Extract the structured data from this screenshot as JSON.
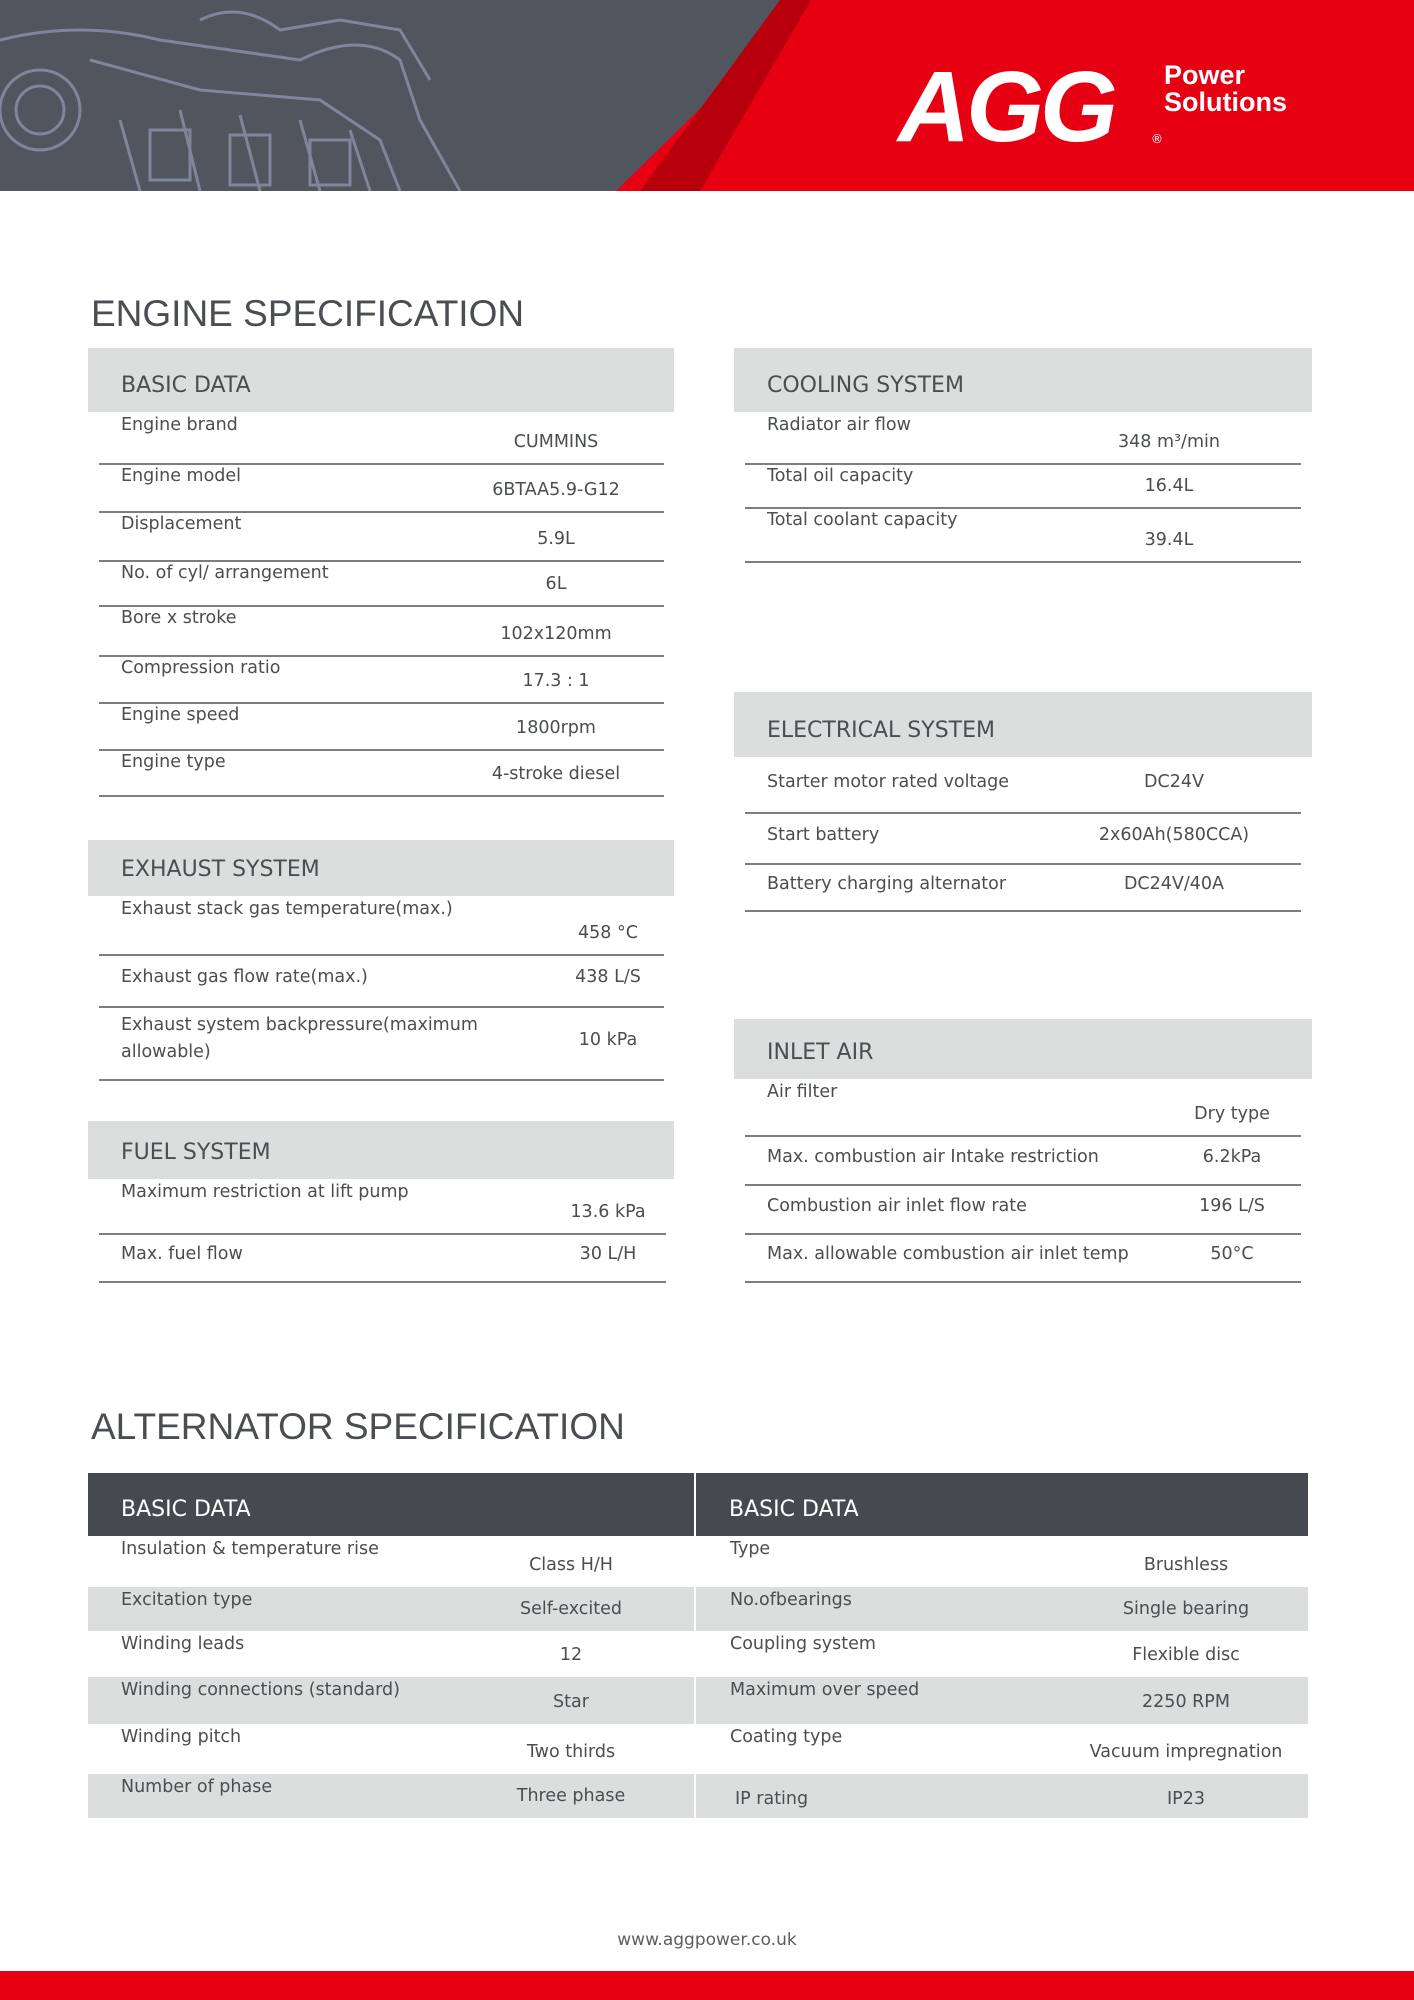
{
  "brand": {
    "logo_text": "AGG",
    "logo_sub_1": "Power",
    "logo_sub_2": "Solutions",
    "registered": "®",
    "colors": {
      "red": "#e60012",
      "dark_gray": "#50555e",
      "header_gray": "#dcdedd",
      "table_dark": "#464a50"
    }
  },
  "engine": {
    "title": "ENGINE SPECIFICATION",
    "basic": {
      "heading": "BASIC DATA",
      "rows": [
        {
          "label": "Engine brand",
          "value": "CUMMINS"
        },
        {
          "label": "Engine model",
          "value": "6BTAA5.9-G12"
        },
        {
          "label": "Displacement",
          "value": "5.9L"
        },
        {
          "label": "No. of cyl/ arrangement",
          "value": "6L"
        },
        {
          "label": "Bore x stroke",
          "value": "102x120mm"
        },
        {
          "label": "Compression ratio",
          "value": "17.3 : 1"
        },
        {
          "label": "Engine speed",
          "value": "1800rpm"
        },
        {
          "label": "Engine type",
          "value": "4-stroke diesel"
        }
      ]
    },
    "cooling": {
      "heading": "COOLING SYSTEM",
      "rows": [
        {
          "label": "Radiator air flow",
          "value": "348 m³/min"
        },
        {
          "label": "Total oil capacity",
          "value": "16.4L"
        },
        {
          "label": "Total coolant capacity",
          "value": "39.4L"
        }
      ]
    },
    "electrical": {
      "heading": "ELECTRICAL SYSTEM",
      "rows": [
        {
          "label": "Starter motor rated voltage",
          "value": "DC24V"
        },
        {
          "label": "Start battery",
          "value": "2x60Ah(580CCA)"
        },
        {
          "label": "Battery charging alternator",
          "value": "DC24V/40A"
        }
      ]
    },
    "exhaust": {
      "heading": "EXHAUST SYSTEM",
      "rows": [
        {
          "label": "Exhaust stack gas temperature(max.)",
          "value": "458 °C"
        },
        {
          "label": "Exhaust gas flow rate(max.)",
          "value": "438 L/S"
        },
        {
          "label": "Exhaust system backpressure(maximum allowable)",
          "value": "10 kPa"
        }
      ]
    },
    "fuel": {
      "heading": "FUEL SYSTEM",
      "rows": [
        {
          "label": "Maximum restriction at lift pump",
          "value": "13.6 kPa"
        },
        {
          "label": "Max. fuel flow",
          "value": "30 L/H"
        }
      ]
    },
    "inlet": {
      "heading": "INLET AIR",
      "rows": [
        {
          "label": "Air filter",
          "value": "Dry type"
        },
        {
          "label": "Max. combustion air Intake restriction",
          "value": "6.2kPa"
        },
        {
          "label": "Combustion air inlet flow rate",
          "value": "196 L/S"
        },
        {
          "label": "Max. allowable combustion air inlet temp",
          "value": "50°C"
        }
      ]
    }
  },
  "alternator": {
    "title": "ALTERNATOR SPECIFICATION",
    "left": {
      "heading": "BASIC DATA",
      "rows": [
        {
          "label": "Insulation & temperature rise",
          "value": "Class H/H"
        },
        {
          "label": "Excitation type",
          "value": "Self-excited"
        },
        {
          "label": "Winding leads",
          "value": "12"
        },
        {
          "label": "Winding connections (standard)",
          "value": "Star"
        },
        {
          "label": "Winding pitch",
          "value": "Two thirds"
        },
        {
          "label": "Number of phase",
          "value": "Three phase"
        }
      ]
    },
    "right": {
      "heading": "BASIC DATA",
      "rows": [
        {
          "label": "Type",
          "value": "Brushless"
        },
        {
          "label": "No.ofbearings",
          "value": "Single bearing"
        },
        {
          "label": "Coupling system",
          "value": "Flexible disc"
        },
        {
          "label": "Maximum over speed",
          "value": "2250 RPM"
        },
        {
          "label": "Coating type",
          "value": "Vacuum impregnation"
        },
        {
          "label": "IP rating",
          "value": "IP23"
        }
      ]
    }
  },
  "footer": {
    "url": "www.aggpower.co.uk"
  }
}
